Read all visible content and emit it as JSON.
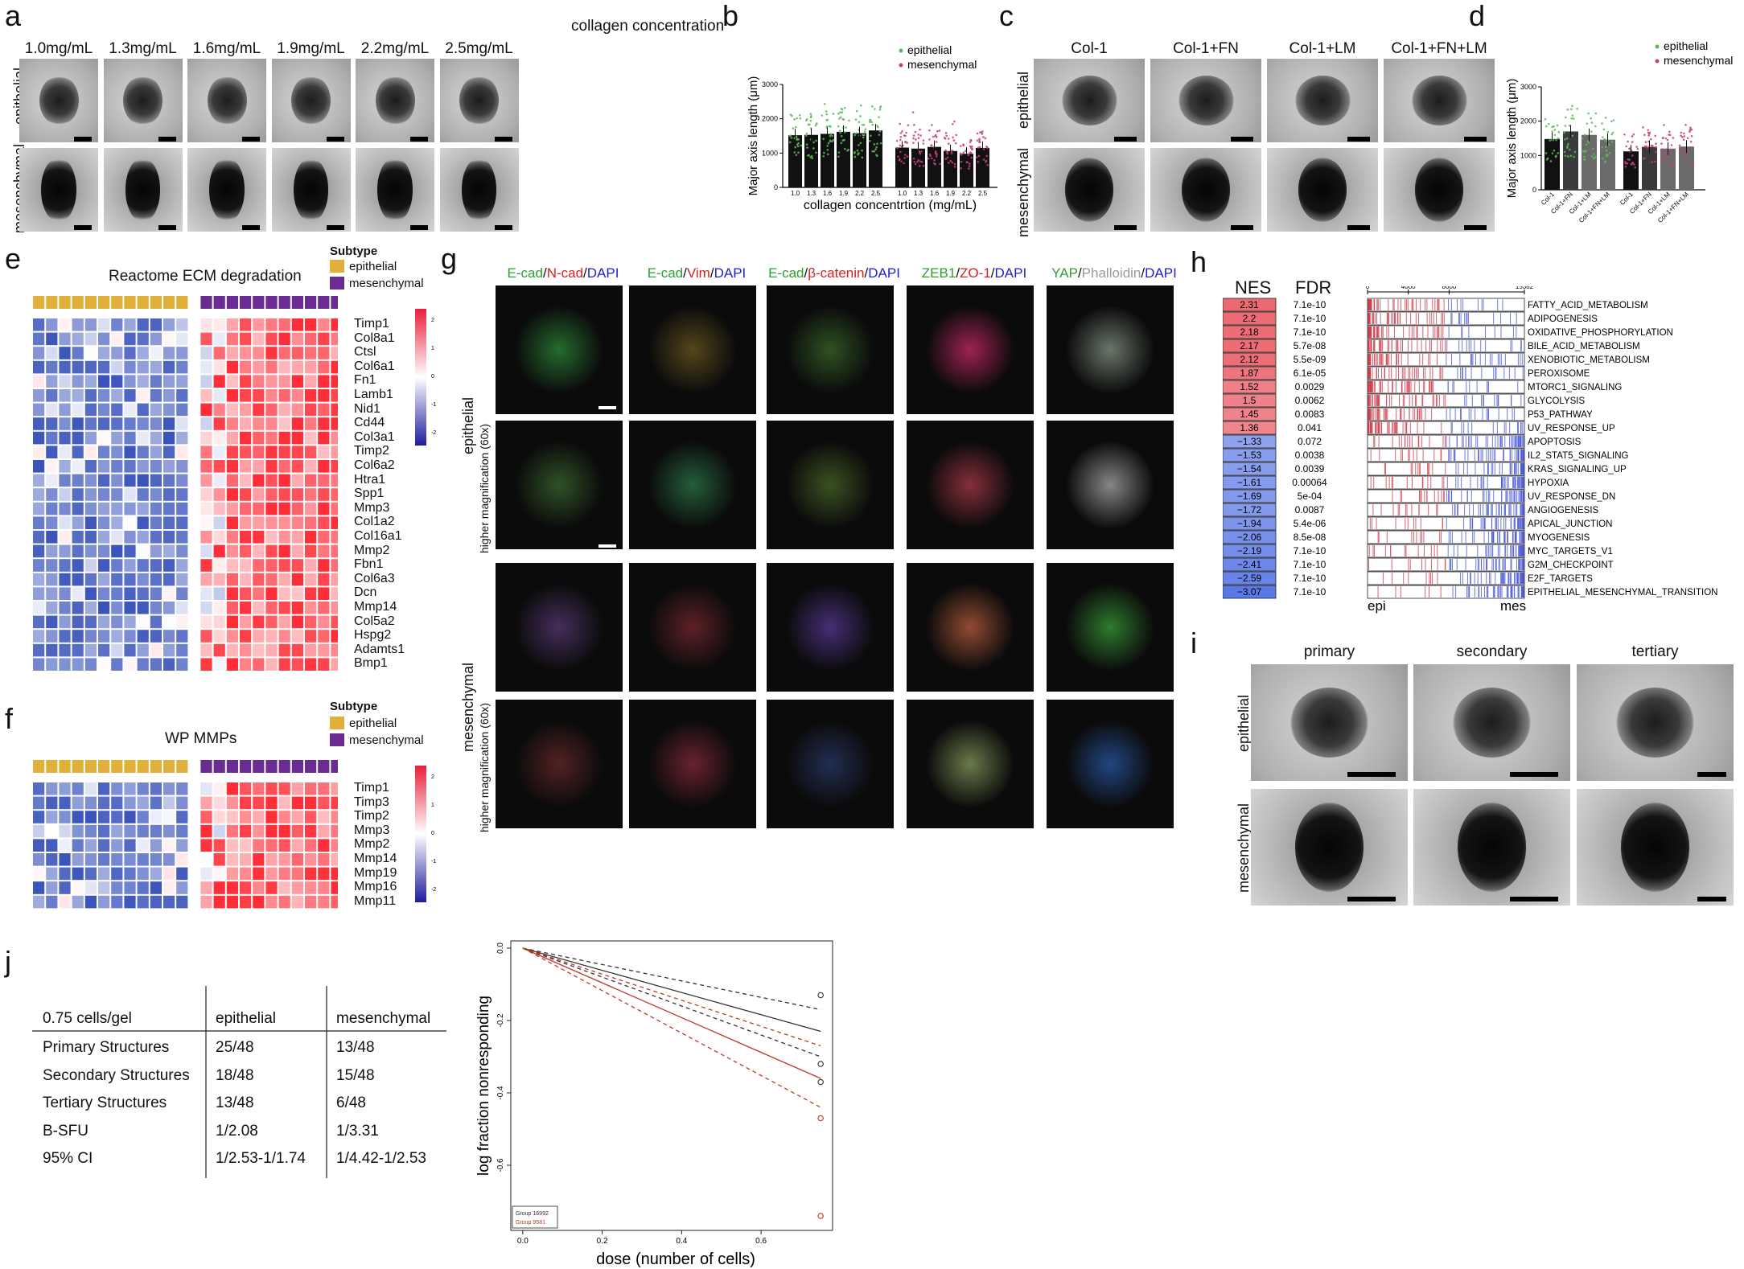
{
  "panel_labels": [
    "a",
    "b",
    "c",
    "d",
    "e",
    "f",
    "g",
    "h",
    "i",
    "j"
  ],
  "panel_a": {
    "header": "collagen concentration",
    "columns": [
      "1.0mg/mL",
      "1.3mg/mL",
      "1.6mg/mL",
      "1.9mg/mL",
      "2.2mg/mL",
      "2.5mg/mL"
    ],
    "rows": [
      "epithelial",
      "mesenchymal"
    ]
  },
  "panel_b": {
    "ylabel": "Major axis length (μm)",
    "xlabel": "collagen concentrtion (mg/mL)",
    "yticks": [
      "0",
      "1000",
      "2000",
      "3000"
    ],
    "xticks": [
      "1.0",
      "1.3",
      "1.6",
      "1.9",
      "2.2",
      "2.5",
      "1.0",
      "1.3",
      "1.6",
      "1.9",
      "2.2",
      "2.5"
    ],
    "legend": [
      "epithelial",
      "mesenchymal"
    ],
    "colors": {
      "epithelial": "#5cb85c",
      "mesenchymal": "#c2417e"
    }
  },
  "panel_c": {
    "columns": [
      "Col-1",
      "Col-1+FN",
      "Col-1+LM",
      "Col-1+FN+LM"
    ],
    "rows": [
      "epithelial",
      "mesenchymal"
    ]
  },
  "panel_d": {
    "ylabel": "Major axis length (μm)",
    "yticks": [
      "0",
      "1000",
      "2000",
      "3000"
    ],
    "xticks": [
      "Col-1",
      "Col-1+FN",
      "Col-1+LM",
      "Col-1+FN+LM",
      "Col-1",
      "Col-1+FN",
      "Col-1+LM",
      "Col-1+FN+LM"
    ],
    "legend": [
      "epithelial",
      "mesenchymal"
    ]
  },
  "panel_e": {
    "title": "Reactome ECM degradation",
    "subtype_title": "Subtype",
    "subtypes": [
      "epithelial",
      "mesenchymal"
    ],
    "subtype_colors": {
      "epithelial": "#e0b03a",
      "mesenchymal": "#6a2c91"
    },
    "genes": [
      "Timp1",
      "Col8a1",
      "Ctsl",
      "Col6a1",
      "Fn1",
      "Lamb1",
      "Nid1",
      "Cd44",
      "Col3a1",
      "Timp2",
      "Col6a2",
      "Htra1",
      "Spp1",
      "Mmp3",
      "Col1a2",
      "Col16a1",
      "Mmp2",
      "Fbn1",
      "Col6a3",
      "Dcn",
      "Mmp14",
      "Col5a2",
      "Hspg2",
      "Adamts1",
      "Bmp1"
    ],
    "scale_ticks": [
      "2",
      "1",
      "0",
      "-1",
      "-2"
    ]
  },
  "panel_f": {
    "title": "WP MMPs",
    "subtype_title": "Subtype",
    "subtypes": [
      "epithelial",
      "mesenchymal"
    ],
    "genes": [
      "Timp1",
      "Timp3",
      "Timp2",
      "Mmp3",
      "Mmp2",
      "Mmp14",
      "Mmp19",
      "Mmp16",
      "Mmp11"
    ],
    "scale_ticks": [
      "2",
      "1",
      "0",
      "-1",
      "-2"
    ]
  },
  "panel_g": {
    "columns": [
      [
        {
          "t": "E-cad",
          "c": "#2e9e2e"
        },
        {
          "t": "/",
          "c": "#111"
        },
        {
          "t": "N-cad",
          "c": "#d62020"
        },
        {
          "t": "/",
          "c": "#111"
        },
        {
          "t": "DAPI",
          "c": "#2020c8"
        }
      ],
      [
        {
          "t": "E-cad",
          "c": "#2e9e2e"
        },
        {
          "t": "/",
          "c": "#111"
        },
        {
          "t": "Vim",
          "c": "#d62020"
        },
        {
          "t": "/",
          "c": "#111"
        },
        {
          "t": "DAPI",
          "c": "#2020c8"
        }
      ],
      [
        {
          "t": "E-cad",
          "c": "#2e9e2e"
        },
        {
          "t": "/",
          "c": "#111"
        },
        {
          "t": "β-catenin",
          "c": "#d62020"
        },
        {
          "t": "/",
          "c": "#111"
        },
        {
          "t": "DAPI",
          "c": "#2020c8"
        }
      ],
      [
        {
          "t": "ZEB1",
          "c": "#2e9e2e"
        },
        {
          "t": "/",
          "c": "#111"
        },
        {
          "t": "ZO-1",
          "c": "#d62020"
        },
        {
          "t": "/",
          "c": "#111"
        },
        {
          "t": "DAPI",
          "c": "#2020c8"
        }
      ],
      [
        {
          "t": "YAP",
          "c": "#2e9e2e"
        },
        {
          "t": "/",
          "c": "#111"
        },
        {
          "t": "Phalloidin",
          "c": "#9a9a9a"
        },
        {
          "t": "/",
          "c": "#111"
        },
        {
          "t": "DAPI",
          "c": "#2020c8"
        }
      ]
    ],
    "row_epithelial": "epithelial",
    "row_mesenchymal": "mesenchymal",
    "row_mag": "higher magnification (60x)"
  },
  "panel_h": {
    "nes_header": "NES",
    "fdr_header": "FDR",
    "axis_ticks": [
      "0",
      "4000",
      "8000",
      "15382"
    ],
    "axis_left": "epi",
    "axis_right": "mes",
    "rows": [
      {
        "nes": "2.31",
        "fdr": "7.1e-10",
        "name": "FATTY_ACID_METABOLISM",
        "value": 2.31
      },
      {
        "nes": "2.2",
        "fdr": "7.1e-10",
        "name": "ADIPOGENESIS",
        "value": 2.2
      },
      {
        "nes": "2.18",
        "fdr": "7.1e-10",
        "name": "OXIDATIVE_PHOSPHORYLATION",
        "value": 2.18
      },
      {
        "nes": "2.17",
        "fdr": "5.7e-08",
        "name": "BILE_ACID_METABOLISM",
        "value": 2.17
      },
      {
        "nes": "2.12",
        "fdr": "5.5e-09",
        "name": "XENOBIOTIC_METABOLISM",
        "value": 2.12
      },
      {
        "nes": "1.87",
        "fdr": "6.1e-05",
        "name": "PEROXISOME",
        "value": 1.87
      },
      {
        "nes": "1.52",
        "fdr": "0.0029",
        "name": "MTORC1_SIGNALING",
        "value": 1.52
      },
      {
        "nes": "1.5",
        "fdr": "0.0062",
        "name": "GLYCOLYSIS",
        "value": 1.5
      },
      {
        "nes": "1.45",
        "fdr": "0.0083",
        "name": "P53_PATHWAY",
        "value": 1.45
      },
      {
        "nes": "1.36",
        "fdr": "0.041",
        "name": "UV_RESPONSE_UP",
        "value": 1.36
      },
      {
        "nes": "−1.33",
        "fdr": "0.072",
        "name": "APOPTOSIS",
        "value": -1.33
      },
      {
        "nes": "−1.53",
        "fdr": "0.0038",
        "name": "IL2_STAT5_SIGNALING",
        "value": -1.53
      },
      {
        "nes": "−1.54",
        "fdr": "0.0039",
        "name": "KRAS_SIGNALING_UP",
        "value": -1.54
      },
      {
        "nes": "−1.61",
        "fdr": "0.00064",
        "name": "HYPOXIA",
        "value": -1.61
      },
      {
        "nes": "−1.69",
        "fdr": "5e-04",
        "name": "UV_RESPONSE_DN",
        "value": -1.69
      },
      {
        "nes": "−1.72",
        "fdr": "0.0087",
        "name": "ANGIOGENESIS",
        "value": -1.72
      },
      {
        "nes": "−1.94",
        "fdr": "5.4e-06",
        "name": "APICAL_JUNCTION",
        "value": -1.94
      },
      {
        "nes": "−2.06",
        "fdr": "8.5e-08",
        "name": "MYOGENESIS",
        "value": -2.06
      },
      {
        "nes": "−2.19",
        "fdr": "7.1e-10",
        "name": "MYC_TARGETS_V1",
        "value": -2.19
      },
      {
        "nes": "−2.41",
        "fdr": "7.1e-10",
        "name": "G2M_CHECKPOINT",
        "value": -2.41
      },
      {
        "nes": "−2.59",
        "fdr": "7.1e-10",
        "name": "E2F_TARGETS",
        "value": -2.59
      },
      {
        "nes": "−3.07",
        "fdr": "7.1e-10",
        "name": "EPITHELIAL_MESENCHYMAL_TRANSITION",
        "value": -3.07
      }
    ]
  },
  "panel_i": {
    "columns": [
      "primary",
      "secondary",
      "tertiary"
    ],
    "rows": [
      "epithelial",
      "mesenchymal"
    ]
  },
  "panel_j": {
    "table": {
      "headers": [
        "0.75 cells/gel",
        "epithelial",
        "mesenchymal"
      ],
      "rows": [
        [
          "Primary Structures",
          "25/48",
          "13/48"
        ],
        [
          "Secondary Structures",
          "18/48",
          "15/48"
        ],
        [
          "Tertiary Structures",
          "13/48",
          "6/48"
        ],
        [
          "B-SFU",
          "1/2.08",
          "1/3.31"
        ],
        [
          "95% CI",
          "1/2.53-1/1.74",
          "1/4.42-1/2.53"
        ]
      ]
    }
  },
  "chart_data": [
    {
      "type": "bar",
      "panel": "b",
      "title": "",
      "xlabel": "collagen concentrtion (mg/mL)",
      "ylabel": "Major axis length (μm)",
      "ylim": [
        0,
        3000
      ],
      "categories": [
        "1.0",
        "1.3",
        "1.6",
        "1.9",
        "2.2",
        "2.5"
      ],
      "series": [
        {
          "name": "epithelial",
          "values": [
            1520,
            1530,
            1560,
            1620,
            1580,
            1660
          ]
        },
        {
          "name": "mesenchymal",
          "values": [
            1160,
            1130,
            1180,
            1060,
            980,
            1150
          ]
        }
      ]
    },
    {
      "type": "bar",
      "panel": "d",
      "title": "",
      "xlabel": "",
      "ylabel": "Major axis length (μm)",
      "ylim": [
        0,
        3000
      ],
      "categories": [
        "Col-1",
        "Col-1+FN",
        "Col-1+LM",
        "Col-1+FN+LM"
      ],
      "series": [
        {
          "name": "epithelial",
          "values": [
            1480,
            1700,
            1600,
            1460
          ]
        },
        {
          "name": "mesenchymal",
          "values": [
            1120,
            1250,
            1200,
            1260
          ]
        }
      ]
    },
    {
      "type": "line",
      "panel": "j",
      "title": "",
      "xlabel": "dose (number of cells)",
      "ylabel": "log fraction nonresponding",
      "xlim": [
        0,
        0.75
      ],
      "ylim": [
        -0.75,
        0
      ],
      "xticks": [
        "0.0",
        "0.2",
        "0.4",
        "0.6"
      ],
      "yticks": [
        "0.0",
        "-0.2",
        "-0.4",
        "-0.6"
      ],
      "legend": [
        "Group 16992",
        "Group 9581"
      ],
      "series": [
        {
          "name": "Group 16992",
          "color": "#333333",
          "x": [
            0,
            0.75
          ],
          "y": [
            0,
            -0.23
          ],
          "style": "solid"
        },
        {
          "name": "",
          "color": "#333333",
          "x": [
            0,
            0.75
          ],
          "y": [
            0,
            -0.17
          ],
          "style": "dashed"
        },
        {
          "name": "",
          "color": "#333333",
          "x": [
            0,
            0.75
          ],
          "y": [
            0,
            -0.3
          ],
          "style": "dashed"
        },
        {
          "name": "Group 9581",
          "color": "#c0392b",
          "x": [
            0,
            0.75
          ],
          "y": [
            0,
            -0.36
          ],
          "style": "solid"
        },
        {
          "name": "",
          "color": "#c0392b",
          "x": [
            0,
            0.75
          ],
          "y": [
            0,
            -0.27
          ],
          "style": "dashed"
        },
        {
          "name": "",
          "color": "#c0392b",
          "x": [
            0,
            0.75
          ],
          "y": [
            0,
            -0.44
          ],
          "style": "dashed"
        }
      ],
      "points": [
        {
          "x": 0.75,
          "y": -0.13,
          "color": "#333333"
        },
        {
          "x": 0.75,
          "y": -0.32,
          "color": "#333333"
        },
        {
          "x": 0.75,
          "y": -0.37,
          "color": "#333333"
        },
        {
          "x": 0.75,
          "y": -0.47,
          "color": "#c0392b"
        },
        {
          "x": 0.75,
          "y": -0.74,
          "color": "#c0392b"
        }
      ]
    }
  ]
}
